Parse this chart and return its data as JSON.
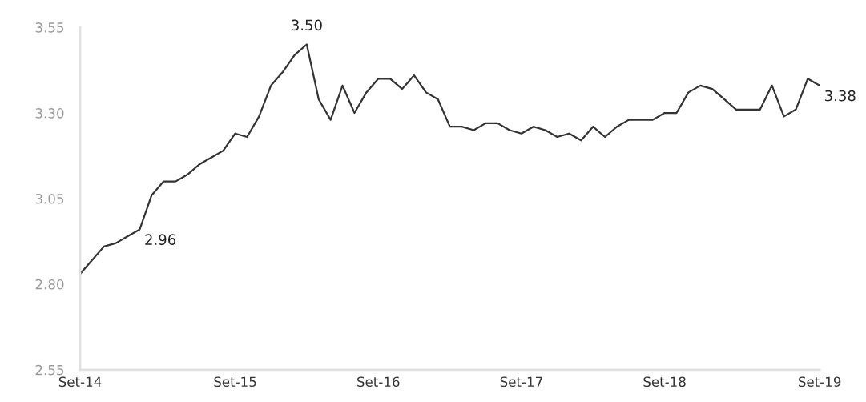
{
  "chart_data": {
    "type": "line",
    "categories": [
      "Set-14",
      null,
      null,
      null,
      null,
      null,
      null,
      null,
      null,
      null,
      null,
      null,
      null,
      "Set-15",
      null,
      null,
      null,
      null,
      null,
      null,
      null,
      null,
      null,
      null,
      null,
      "Set-16",
      null,
      null,
      null,
      null,
      null,
      null,
      null,
      null,
      null,
      null,
      null,
      "Set-17",
      null,
      null,
      null,
      null,
      null,
      null,
      null,
      null,
      null,
      null,
      null,
      "Set-18",
      null,
      null,
      null,
      null,
      null,
      null,
      null,
      null,
      null,
      null,
      null,
      null,
      "Set-19"
    ],
    "series": [
      {
        "color": "#333333",
        "values": [
          2.83,
          2.87,
          2.91,
          2.92,
          2.94,
          2.96,
          3.06,
          3.1,
          3.1,
          3.12,
          3.15,
          3.17,
          3.19,
          3.24,
          3.23,
          3.29,
          3.38,
          3.42,
          3.47,
          3.5,
          3.34,
          3.28,
          3.38,
          3.3,
          3.36,
          3.4,
          3.4,
          3.37,
          3.41,
          3.36,
          3.34,
          3.26,
          3.26,
          3.25,
          3.27,
          3.27,
          3.25,
          3.24,
          3.26,
          3.25,
          3.23,
          3.24,
          3.22,
          3.26,
          3.23,
          3.26,
          3.28,
          3.28,
          3.28,
          3.3,
          3.3,
          3.36,
          3.38,
          3.37,
          3.34,
          3.31,
          3.31,
          3.31,
          3.38,
          3.29,
          3.31,
          3.4,
          3.38
        ],
        "value_labels": [
          null,
          null,
          null,
          null,
          null,
          "2.96",
          null,
          null,
          null,
          null,
          null,
          null,
          null,
          null,
          null,
          null,
          null,
          null,
          null,
          "3.50",
          null,
          null,
          null,
          null,
          null,
          null,
          null,
          null,
          null,
          null,
          null,
          null,
          null,
          null,
          null,
          null,
          null,
          null,
          null,
          null,
          null,
          null,
          null,
          null,
          null,
          null,
          null,
          null,
          null,
          null,
          null,
          null,
          null,
          null,
          null,
          null,
          null,
          null,
          null,
          null,
          null,
          null,
          "3.38"
        ]
      }
    ],
    "ylim": [
      2.55,
      3.55
    ],
    "yticks": [
      {
        "value": 2.55,
        "label": "2.55"
      },
      {
        "value": 2.8,
        "label": "2.80"
      },
      {
        "value": 3.05,
        "label": "3.05"
      },
      {
        "value": 3.3,
        "label": "3.30"
      },
      {
        "value": 3.55,
        "label": "3.55"
      }
    ],
    "grid": false,
    "legend": false,
    "marker": "none",
    "line_style": "solid"
  }
}
